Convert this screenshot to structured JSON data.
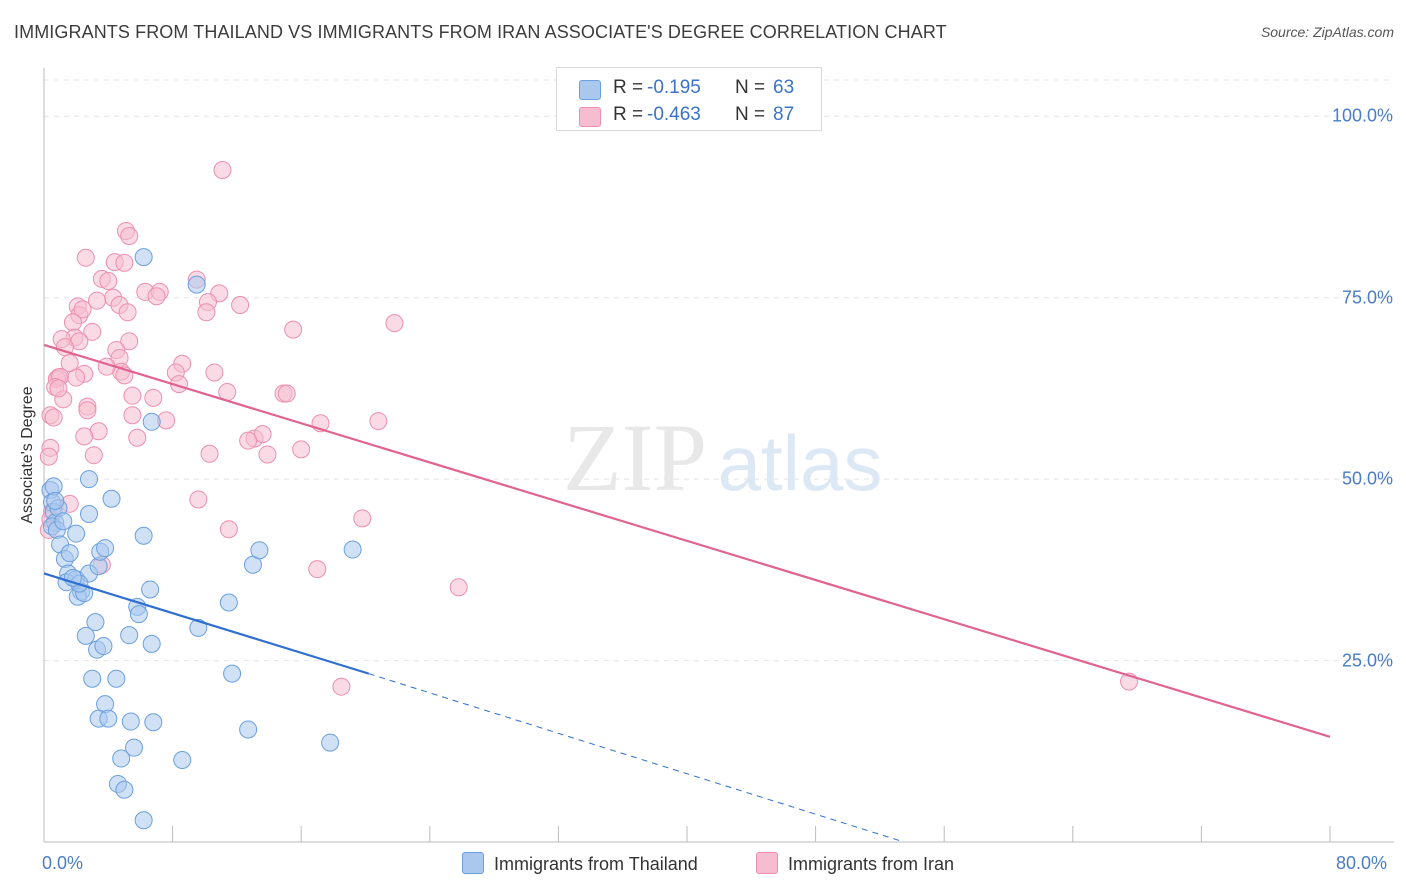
{
  "title": "IMMIGRANTS FROM THAILAND VS IMMIGRANTS FROM IRAN ASSOCIATE'S DEGREE CORRELATION CHART",
  "source": "Source: ZipAtlas.com",
  "watermark": {
    "zip": "ZIP",
    "atlas": "atlas"
  },
  "colors": {
    "thailand_fill": "#aac8ee",
    "thailand_stroke": "#6b9fde",
    "thailand_line": "#2f6fd0",
    "iran_fill": "#f6bdd0",
    "iran_stroke": "#ec8fb0",
    "iran_line": "#e06390",
    "tick_label": "#4a7cc7",
    "grid": "#e3e3e3"
  },
  "stats": {
    "rows": [
      {
        "r_label": "R =",
        "r_value": "-0.195",
        "n_label": "N =",
        "n_value": "63"
      },
      {
        "r_label": "R =",
        "r_value": "-0.463",
        "n_label": "N =",
        "n_value": "87"
      }
    ]
  },
  "legend": {
    "thailand": "Immigrants from Thailand",
    "iran": "Immigrants from Iran"
  },
  "chart_data": {
    "type": "scatter",
    "title": "IMMIGRANTS FROM THAILAND VS IMMIGRANTS FROM IRAN ASSOCIATE'S DEGREE CORRELATION CHART",
    "xlabel": "",
    "ylabel": "Associate's Degree",
    "xlim": [
      0,
      80
    ],
    "ylim": [
      0,
      105
    ],
    "x_tick_labels": [
      "0.0%",
      "80.0%"
    ],
    "y_ticks": [
      25,
      50,
      75,
      100
    ],
    "y_tick_labels": [
      "25.0%",
      "50.0%",
      "75.0%",
      "100.0%"
    ],
    "grid": true,
    "legend_position": "bottom",
    "series": [
      {
        "name": "Immigrants from Thailand",
        "regression": {
          "x0": 0,
          "y0": 37.0,
          "x1": 20.2,
          "y1": 23.2,
          "dashed_to_x": 53.5,
          "dashed_to_y": 0
        },
        "points": [
          [
            0.4,
            48.5
          ],
          [
            0.5,
            46.8
          ],
          [
            0.6,
            45.5
          ],
          [
            0.7,
            44.0
          ],
          [
            0.5,
            43.5
          ],
          [
            0.8,
            43.0
          ],
          [
            1.0,
            41.0
          ],
          [
            1.3,
            39.0
          ],
          [
            1.6,
            39.8
          ],
          [
            2.0,
            42.5
          ],
          [
            1.5,
            37.0
          ],
          [
            1.4,
            35.8
          ],
          [
            2.0,
            36.2
          ],
          [
            2.3,
            34.5
          ],
          [
            2.1,
            33.8
          ],
          [
            2.5,
            34.3
          ],
          [
            2.8,
            37.0
          ],
          [
            3.4,
            38.0
          ],
          [
            3.5,
            40.0
          ],
          [
            3.8,
            40.5
          ],
          [
            4.2,
            47.3
          ],
          [
            2.8,
            45.2
          ],
          [
            2.8,
            50.0
          ],
          [
            6.2,
            80.6
          ],
          [
            9.5,
            76.8
          ],
          [
            6.7,
            57.9
          ],
          [
            6.2,
            42.2
          ],
          [
            6.6,
            34.8
          ],
          [
            5.8,
            32.4
          ],
          [
            5.9,
            31.4
          ],
          [
            5.3,
            28.5
          ],
          [
            6.7,
            27.3
          ],
          [
            3.2,
            30.3
          ],
          [
            2.6,
            28.4
          ],
          [
            3.3,
            26.5
          ],
          [
            3.7,
            27.0
          ],
          [
            3.0,
            22.5
          ],
          [
            4.5,
            22.5
          ],
          [
            3.8,
            19.0
          ],
          [
            3.4,
            17.0
          ],
          [
            4.0,
            17.0
          ],
          [
            5.4,
            16.6
          ],
          [
            6.8,
            16.5
          ],
          [
            5.6,
            13.0
          ],
          [
            4.8,
            11.5
          ],
          [
            8.6,
            11.3
          ],
          [
            4.6,
            8.0
          ],
          [
            5.0,
            7.2
          ],
          [
            6.2,
            3.0
          ],
          [
            9.6,
            29.5
          ],
          [
            11.5,
            33.0
          ],
          [
            11.7,
            23.2
          ],
          [
            12.7,
            15.5
          ],
          [
            13.0,
            38.2
          ],
          [
            13.4,
            40.2
          ],
          [
            17.8,
            13.7
          ],
          [
            19.2,
            40.3
          ],
          [
            0.6,
            49.0
          ],
          [
            0.9,
            46.0
          ],
          [
            1.2,
            44.2
          ],
          [
            0.7,
            47.0
          ],
          [
            2.2,
            35.6
          ],
          [
            1.8,
            36.4
          ]
        ]
      },
      {
        "name": "Immigrants from Iran",
        "regression": {
          "x0": 0,
          "y0": 68.5,
          "x1": 80,
          "y1": 14.5
        },
        "points": [
          [
            11.1,
            92.6
          ],
          [
            5.1,
            84.2
          ],
          [
            5.3,
            83.5
          ],
          [
            2.6,
            80.5
          ],
          [
            4.4,
            79.9
          ],
          [
            5.0,
            79.8
          ],
          [
            3.6,
            77.6
          ],
          [
            4.0,
            77.3
          ],
          [
            9.5,
            77.5
          ],
          [
            6.3,
            75.8
          ],
          [
            7.2,
            75.8
          ],
          [
            10.9,
            75.6
          ],
          [
            4.3,
            75.0
          ],
          [
            7.0,
            75.2
          ],
          [
            10.2,
            74.4
          ],
          [
            12.2,
            74.0
          ],
          [
            3.3,
            74.6
          ],
          [
            4.7,
            74.0
          ],
          [
            2.1,
            73.8
          ],
          [
            2.2,
            72.6
          ],
          [
            10.1,
            73.0
          ],
          [
            2.4,
            73.4
          ],
          [
            5.2,
            73.0
          ],
          [
            1.8,
            71.6
          ],
          [
            21.8,
            71.5
          ],
          [
            3.0,
            70.3
          ],
          [
            15.5,
            70.6
          ],
          [
            1.9,
            69.5
          ],
          [
            2.2,
            69.0
          ],
          [
            1.1,
            69.3
          ],
          [
            1.3,
            68.2
          ],
          [
            5.3,
            69.0
          ],
          [
            4.5,
            67.8
          ],
          [
            4.7,
            66.7
          ],
          [
            8.6,
            65.9
          ],
          [
            4.8,
            64.8
          ],
          [
            5.0,
            64.3
          ],
          [
            8.2,
            64.7
          ],
          [
            10.6,
            64.7
          ],
          [
            2.5,
            64.5
          ],
          [
            0.9,
            64.0
          ],
          [
            0.8,
            63.8
          ],
          [
            1.0,
            64.1
          ],
          [
            8.4,
            63.1
          ],
          [
            0.7,
            62.7
          ],
          [
            11.4,
            62.0
          ],
          [
            14.9,
            61.8
          ],
          [
            15.1,
            61.8
          ],
          [
            5.5,
            61.5
          ],
          [
            6.8,
            61.2
          ],
          [
            1.2,
            61.0
          ],
          [
            2.7,
            60.0
          ],
          [
            0.4,
            58.8
          ],
          [
            2.7,
            59.5
          ],
          [
            5.5,
            58.8
          ],
          [
            7.6,
            58.1
          ],
          [
            17.2,
            57.7
          ],
          [
            20.8,
            58.0
          ],
          [
            3.4,
            56.6
          ],
          [
            2.5,
            55.9
          ],
          [
            5.8,
            55.7
          ],
          [
            13.1,
            55.6
          ],
          [
            13.6,
            56.2
          ],
          [
            12.7,
            55.3
          ],
          [
            16.0,
            54.1
          ],
          [
            0.4,
            54.3
          ],
          [
            0.3,
            53.1
          ],
          [
            3.1,
            53.3
          ],
          [
            10.3,
            53.5
          ],
          [
            13.9,
            53.4
          ],
          [
            9.6,
            47.2
          ],
          [
            1.6,
            46.6
          ],
          [
            0.5,
            45.5
          ],
          [
            0.4,
            44.5
          ],
          [
            19.8,
            44.6
          ],
          [
            11.5,
            43.1
          ],
          [
            0.3,
            43.0
          ],
          [
            3.6,
            38.2
          ],
          [
            17.0,
            37.6
          ],
          [
            25.8,
            35.1
          ],
          [
            18.5,
            21.4
          ],
          [
            67.5,
            22.1
          ],
          [
            0.6,
            58.5
          ],
          [
            0.9,
            62.5
          ],
          [
            2.0,
            64.0
          ],
          [
            1.6,
            66.0
          ],
          [
            3.9,
            65.5
          ]
        ]
      }
    ]
  }
}
